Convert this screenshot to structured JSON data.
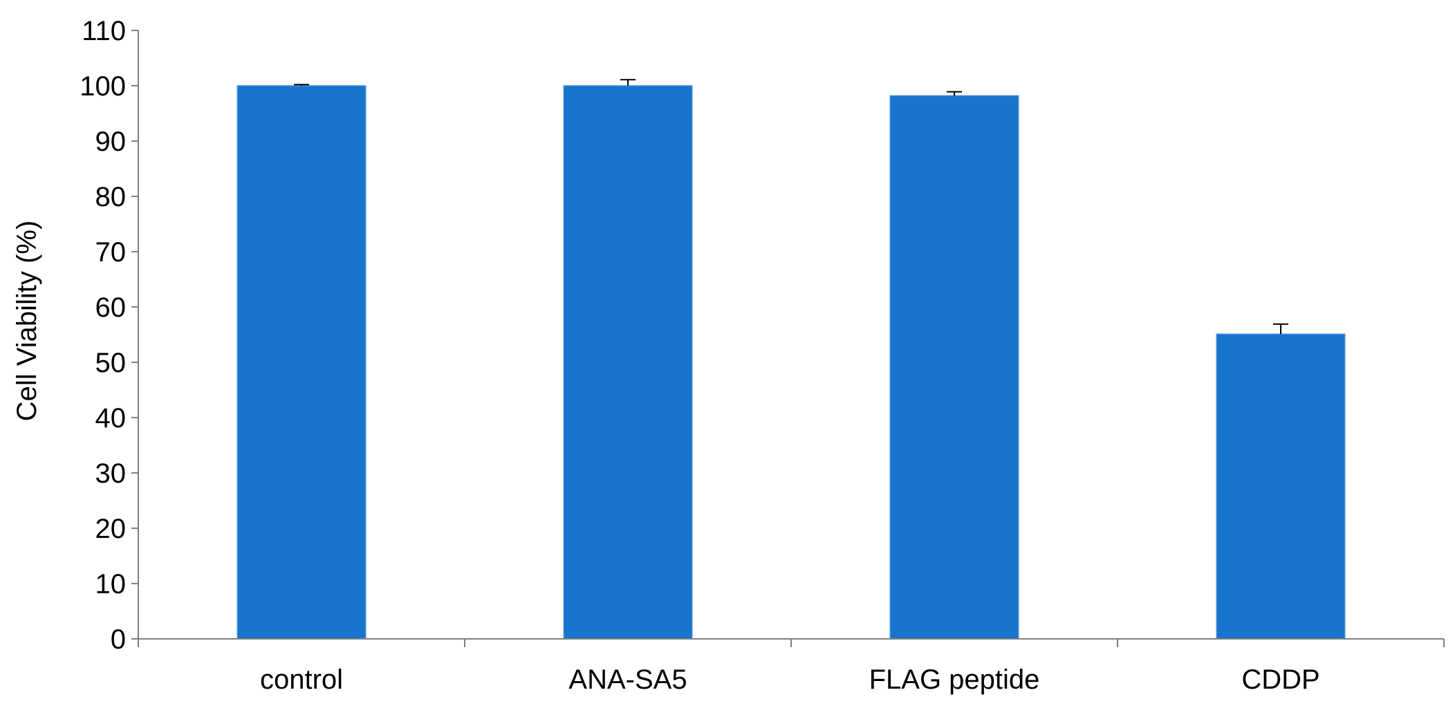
{
  "chart_data": {
    "type": "bar",
    "title": "",
    "xlabel": "",
    "ylabel": "Cell Viability (%)",
    "ylim": [
      0,
      110
    ],
    "yticks": [
      0,
      10,
      20,
      30,
      40,
      50,
      60,
      70,
      80,
      90,
      100,
      110
    ],
    "categories": [
      "control",
      "ANA-SA5",
      "FLAG peptide",
      "CDDP"
    ],
    "values": [
      100,
      100,
      98.2,
      55.1
    ],
    "errors": [
      0.2,
      1.1,
      0.7,
      1.8
    ],
    "grid": false,
    "legend": "none",
    "colors": {
      "bar": "#1874CD",
      "bar_edge": "#4A90D9",
      "axis": "#7F7F7F",
      "error_bar": "#000000"
    }
  }
}
